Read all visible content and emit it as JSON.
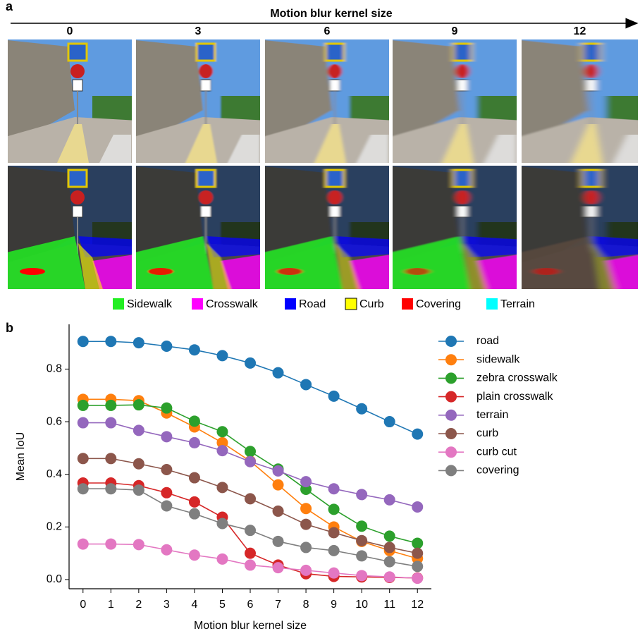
{
  "panel_a": {
    "label": "a",
    "title": "Motion blur kernel size",
    "columns": [
      0,
      3,
      6,
      9,
      12
    ],
    "legend": [
      {
        "name": "Sidewalk",
        "color": "#22ee22"
      },
      {
        "name": "Crosswalk",
        "color": "#ff00ff"
      },
      {
        "name": "Road",
        "color": "#0000ff"
      },
      {
        "name": "Curb",
        "color": "#ffff00"
      },
      {
        "name": "Covering",
        "color": "#ff0000"
      },
      {
        "name": "Terrain",
        "color": "#00ffff"
      }
    ]
  },
  "chart_data": {
    "type": "line",
    "label": "b",
    "xlabel": "Motion blur kernel size",
    "ylabel": "Mean IoU",
    "x": [
      0,
      1,
      2,
      3,
      4,
      5,
      6,
      7,
      8,
      9,
      10,
      11,
      12
    ],
    "xlim": [
      -0.5,
      12.5
    ],
    "xticks": [
      0,
      1,
      2,
      3,
      4,
      5,
      6,
      7,
      8,
      9,
      10,
      11,
      12
    ],
    "ylim": [
      -0.035,
      0.97
    ],
    "yticks": [
      {
        "value": 0,
        "label": "0.0"
      },
      0.2,
      0.4,
      0.6,
      0.8
    ],
    "legend": "outside right",
    "grid": false,
    "series": [
      {
        "name": "road",
        "color": "#1f77b4",
        "values": [
          0.905,
          0.905,
          0.9,
          0.887,
          0.873,
          0.851,
          0.823,
          0.786,
          0.741,
          0.697,
          0.649,
          0.6,
          0.553
        ]
      },
      {
        "name": "sidewalk",
        "color": "#ff7f0e",
        "values": [
          0.685,
          0.685,
          0.68,
          0.633,
          0.58,
          0.52,
          0.45,
          0.36,
          0.27,
          0.2,
          0.145,
          0.11,
          0.08
        ]
      },
      {
        "name": "zebra crosswalk",
        "color": "#2ca02c",
        "values": [
          0.662,
          0.662,
          0.664,
          0.652,
          0.602,
          0.562,
          0.487,
          0.42,
          0.343,
          0.267,
          0.203,
          0.165,
          0.138
        ]
      },
      {
        "name": "plain crosswalk",
        "color": "#d62728",
        "values": [
          0.367,
          0.367,
          0.357,
          0.33,
          0.295,
          0.237,
          0.1,
          0.055,
          0.022,
          0.012,
          0.01,
          0.008,
          0.006
        ]
      },
      {
        "name": "terrain",
        "color": "#9467bd",
        "values": [
          0.596,
          0.596,
          0.567,
          0.543,
          0.52,
          0.49,
          0.448,
          0.413,
          0.372,
          0.345,
          0.323,
          0.303,
          0.276
        ]
      },
      {
        "name": "curb",
        "color": "#8c564b",
        "values": [
          0.46,
          0.46,
          0.44,
          0.418,
          0.387,
          0.35,
          0.307,
          0.26,
          0.21,
          0.178,
          0.148,
          0.122,
          0.1
        ]
      },
      {
        "name": "curb cut",
        "color": "#e377c2",
        "values": [
          0.135,
          0.135,
          0.133,
          0.113,
          0.093,
          0.078,
          0.055,
          0.045,
          0.035,
          0.025,
          0.015,
          0.01,
          0.005
        ]
      },
      {
        "name": "covering",
        "color": "#7f7f7f",
        "values": [
          0.345,
          0.345,
          0.34,
          0.28,
          0.25,
          0.213,
          0.187,
          0.145,
          0.122,
          0.11,
          0.09,
          0.068,
          0.05
        ]
      }
    ]
  }
}
